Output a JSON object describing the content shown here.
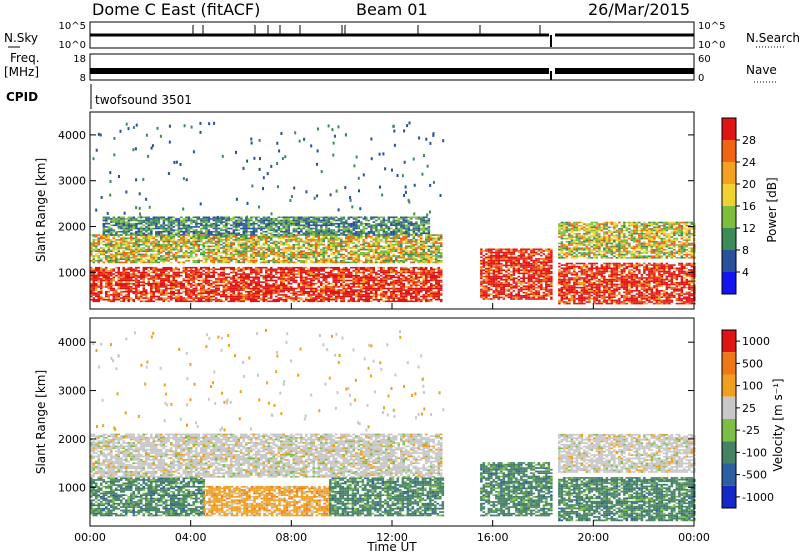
{
  "header": {
    "station": "Dome C East (fitACF)",
    "beam": "Beam 01",
    "date": "26/Mar/2015"
  },
  "summary_panels": {
    "nsky_label": "N.Sky",
    "nsky_ticks": [
      "10^5",
      "10^0"
    ],
    "nsearch_label": "N.Search",
    "nsearch_ticks": [
      "10^5",
      "10^0"
    ],
    "freq_label": "Freq.",
    "freq_unit": "[MHz]",
    "freq_ticks": [
      "18",
      "8"
    ],
    "nave_label": "Nave",
    "nave_ticks": [
      "60",
      "0"
    ],
    "cpid_label": "CPID",
    "cpid_value": "twofsound 3501"
  },
  "colors": {
    "power": [
      "#1414f0",
      "#28509b",
      "#3c8c5a",
      "#7dbe3c",
      "#f0d232",
      "#f5a01e",
      "#f06414",
      "#e11414"
    ],
    "velocity": [
      "#1428c8",
      "#2d5fa0",
      "#468264",
      "#7dbe46",
      "#c8c8c8",
      "#f0a01e",
      "#f07814",
      "#e11414"
    ]
  },
  "chart_data": [
    {
      "type": "heatmap",
      "title": "",
      "xlabel": "Time UT",
      "ylabel": "Slant Range [km]",
      "x_ticks": [
        "00:00",
        "04:00",
        "08:00",
        "12:00",
        "16:00",
        "20:00",
        "00:00"
      ],
      "x_range_hours": [
        0,
        24
      ],
      "y_ticks": [
        1000,
        2000,
        3000,
        4000
      ],
      "y_range_km": [
        200,
        4500
      ],
      "colorbar": {
        "label": "Power [dB]",
        "ticks": [
          4,
          8,
          12,
          16,
          20,
          24,
          28
        ]
      },
      "echo_regions": [
        {
          "t0": 0.0,
          "t1": 14.0,
          "r0": 350,
          "r1": 1100,
          "level": "high"
        },
        {
          "t0": 0.0,
          "t1": 14.0,
          "r0": 1200,
          "r1": 1800,
          "level": "mid"
        },
        {
          "t0": 0.5,
          "t1": 13.5,
          "r0": 1800,
          "r1": 2200,
          "level": "low"
        },
        {
          "t0": 15.5,
          "t1": 18.3,
          "r0": 400,
          "r1": 1500,
          "level": "high"
        },
        {
          "t0": 18.6,
          "t1": 24.0,
          "r0": 300,
          "r1": 1200,
          "level": "high"
        },
        {
          "t0": 18.6,
          "t1": 24.0,
          "r0": 1300,
          "r1": 2100,
          "level": "mid"
        }
      ]
    },
    {
      "type": "heatmap",
      "title": "",
      "xlabel": "Time UT",
      "ylabel": "Slant Range [km]",
      "x_ticks": [
        "00:00",
        "04:00",
        "08:00",
        "12:00",
        "16:00",
        "20:00",
        "00:00"
      ],
      "x_range_hours": [
        0,
        24
      ],
      "y_ticks": [
        1000,
        2000,
        3000,
        4000
      ],
      "y_range_km": [
        200,
        4500
      ],
      "colorbar": {
        "label": "Velocity [m s⁻¹]",
        "ticks": [
          1000,
          500,
          100,
          25,
          -25,
          -100,
          -500,
          -1000
        ]
      },
      "echo_regions": [
        {
          "t0": 0.0,
          "t1": 4.5,
          "r0": 400,
          "r1": 1200,
          "level": "green"
        },
        {
          "t0": 4.5,
          "t1": 9.5,
          "r0": 400,
          "r1": 1000,
          "level": "orange"
        },
        {
          "t0": 9.5,
          "t1": 14.0,
          "r0": 400,
          "r1": 1200,
          "level": "green"
        },
        {
          "t0": 0.0,
          "t1": 14.0,
          "r0": 1200,
          "r1": 2100,
          "level": "grey"
        },
        {
          "t0": 15.5,
          "t1": 18.3,
          "r0": 400,
          "r1": 1500,
          "level": "green"
        },
        {
          "t0": 18.6,
          "t1": 24.0,
          "r0": 300,
          "r1": 1200,
          "level": "green"
        },
        {
          "t0": 18.6,
          "t1": 24.0,
          "r0": 1300,
          "r1": 2100,
          "level": "grey"
        }
      ]
    }
  ]
}
